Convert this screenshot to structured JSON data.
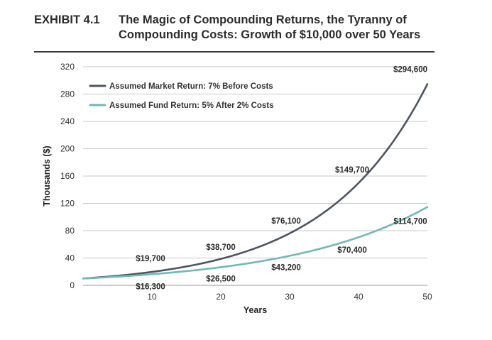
{
  "header": {
    "exhibit": "EXHIBIT 4.1",
    "title": "The Magic of Compounding Returns, the Tyranny of Compounding Costs: Growth of $10,000 over 50 Years"
  },
  "chart_data": {
    "type": "line",
    "title": "The Magic of Compounding Returns, the Tyranny of Compounding Costs: Growth of $10,000 over 50 Years",
    "xlabel": "Years",
    "ylabel": "Thousands ($)",
    "xlim": [
      0,
      50
    ],
    "ylim": [
      0,
      320
    ],
    "x_ticks": [
      10,
      20,
      30,
      40,
      50
    ],
    "y_ticks": [
      0,
      40,
      80,
      120,
      160,
      200,
      240,
      280,
      320
    ],
    "grid": true,
    "legend_position": "top-left",
    "x": [
      0,
      10,
      20,
      30,
      40,
      50
    ],
    "series": [
      {
        "name": "Assumed Market Return: 7% Before Costs",
        "color": "#4d5560",
        "growth_rate": 0.07,
        "values": [
          10,
          19.7,
          38.7,
          76.1,
          149.7,
          294.6
        ],
        "labels": [
          "",
          "$19,700",
          "$38,700",
          "$76,100",
          "$149,700",
          "$294,600"
        ]
      },
      {
        "name": "Assumed Fund Return: 5% After 2% Costs",
        "color": "#6fbab4",
        "growth_rate": 0.05,
        "values": [
          10,
          16.3,
          26.5,
          43.2,
          70.4,
          114.7
        ],
        "labels": [
          "",
          "$16,300",
          "$26,500",
          "$43,200",
          "$70,400",
          "$114,700"
        ]
      }
    ]
  }
}
